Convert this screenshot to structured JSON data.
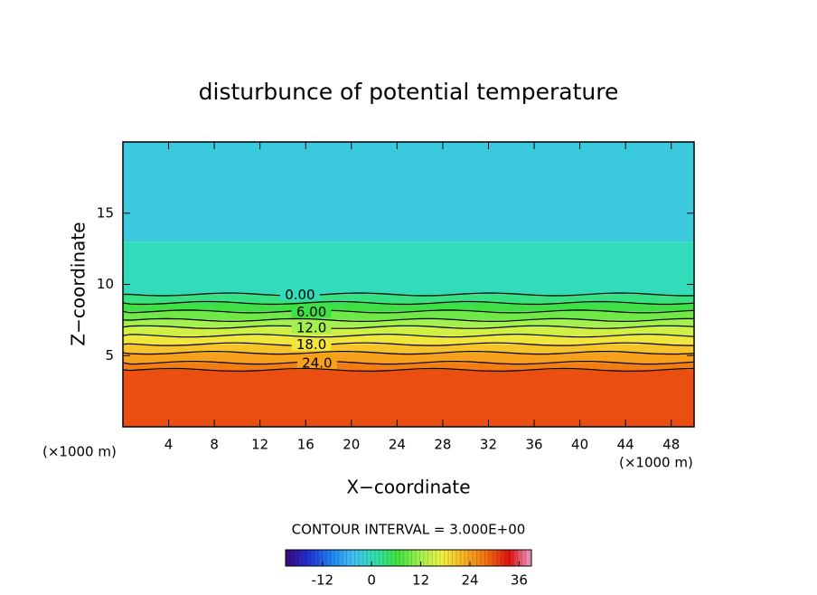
{
  "chart_data": {
    "type": "contour",
    "title": "disturbunce of potential temperature",
    "x_label": "X−coordinate",
    "y_label": "Z−coordinate",
    "x_unit": "(×1000 m)",
    "y_unit": "(×1000 m)",
    "xlim": [
      0,
      50
    ],
    "ylim": [
      0,
      20
    ],
    "xticks": [
      4,
      8,
      12,
      16,
      20,
      24,
      28,
      32,
      36,
      40,
      44,
      48
    ],
    "yticks": [
      5,
      10,
      15
    ],
    "field": {
      "z": [
        0,
        4,
        4.5,
        5.2,
        5.8,
        6.4,
        7,
        7.5,
        8.1,
        8.7,
        9.3,
        13
      ],
      "values": [
        30,
        27,
        24,
        21,
        18,
        15,
        12,
        9,
        6,
        3,
        0,
        -3
      ]
    },
    "contours": [
      {
        "level": {
          "value": 0,
          "label": "0.00"
        },
        "z": 9.3,
        "x": 15.5
      },
      {
        "level": {
          "value": 3,
          "label": ""
        },
        "z": 8.7,
        "x": null
      },
      {
        "level": {
          "value": 6,
          "label": "6.00"
        },
        "z": 8.1,
        "x": 16.5
      },
      {
        "level": {
          "value": 9,
          "label": ""
        },
        "z": 7.5,
        "x": null
      },
      {
        "level": {
          "value": 12,
          "label": "12.0"
        },
        "z": 7,
        "x": 16.5
      },
      {
        "level": {
          "value": 15,
          "label": ""
        },
        "z": 6.4,
        "x": null
      },
      {
        "level": {
          "value": 18,
          "label": "18.0"
        },
        "z": 5.8,
        "x": 16.5
      },
      {
        "level": {
          "value": 21,
          "label": ""
        },
        "z": 5.2,
        "x": null
      },
      {
        "level": {
          "value": 24,
          "label": "24.0"
        },
        "z": 4.5,
        "x": 17
      },
      {
        "level": {
          "value": 27,
          "label": ""
        },
        "z": 4,
        "x": null
      }
    ],
    "contour_interval": "CONTOUR INTERVAL = 3.000E+00",
    "clim": [
      -21,
      39
    ],
    "cticks": [
      -12,
      0,
      12,
      24,
      36
    ],
    "colormap": [
      "#3a0a7a",
      "#2030d0",
      "#2080f0",
      "#40c0f0",
      "#30e0b0",
      "#40e040",
      "#a0f050",
      "#f0f040",
      "#f8b020",
      "#f07010",
      "#e01010",
      "#f0a0d0"
    ]
  }
}
